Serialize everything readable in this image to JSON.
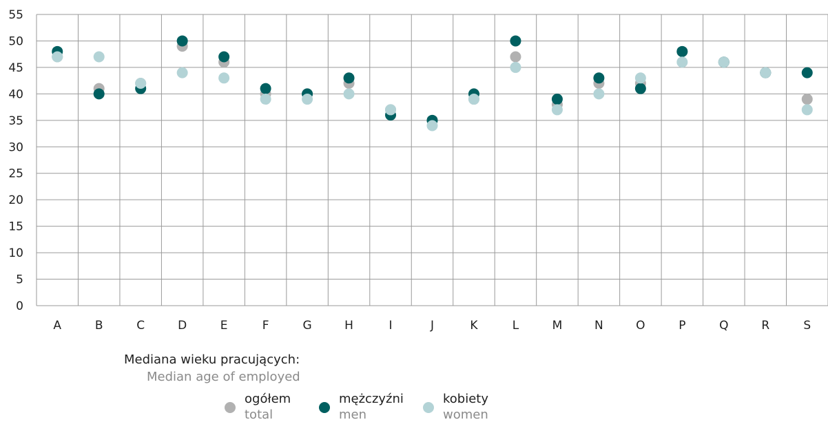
{
  "chart_data": {
    "type": "scatter",
    "categories": [
      "A",
      "B",
      "C",
      "D",
      "E",
      "F",
      "G",
      "H",
      "I",
      "J",
      "K",
      "L",
      "M",
      "N",
      "O",
      "P",
      "Q",
      "R",
      "S"
    ],
    "ylim": [
      0,
      55
    ],
    "yticks": [
      0,
      5,
      10,
      15,
      20,
      25,
      30,
      35,
      40,
      45,
      50,
      55
    ],
    "grid": true,
    "legend_position": "bottom",
    "series": [
      {
        "name": "ogółem",
        "name_en": "total",
        "color": "#b1b1b1",
        "values": [
          47,
          41,
          42,
          49,
          46,
          40,
          40,
          42,
          37,
          35,
          39,
          47,
          38,
          42,
          42,
          48,
          46,
          44,
          39
        ]
      },
      {
        "name": "mężczyźni",
        "name_en": "men",
        "color": "#005f60",
        "values": [
          48,
          40,
          41,
          50,
          47,
          41,
          40,
          43,
          36,
          35,
          40,
          50,
          39,
          43,
          41,
          48,
          46,
          44,
          44
        ]
      },
      {
        "name": "kobiety",
        "name_en": "women",
        "color": "#b3d3d6",
        "values": [
          47,
          47,
          42,
          44,
          43,
          39,
          39,
          40,
          37,
          34,
          39,
          45,
          37,
          40,
          43,
          46,
          46,
          44,
          37
        ]
      }
    ],
    "legend_title": "Mediana wieku pracujących:",
    "legend_subtitle": "Median age of employed"
  }
}
